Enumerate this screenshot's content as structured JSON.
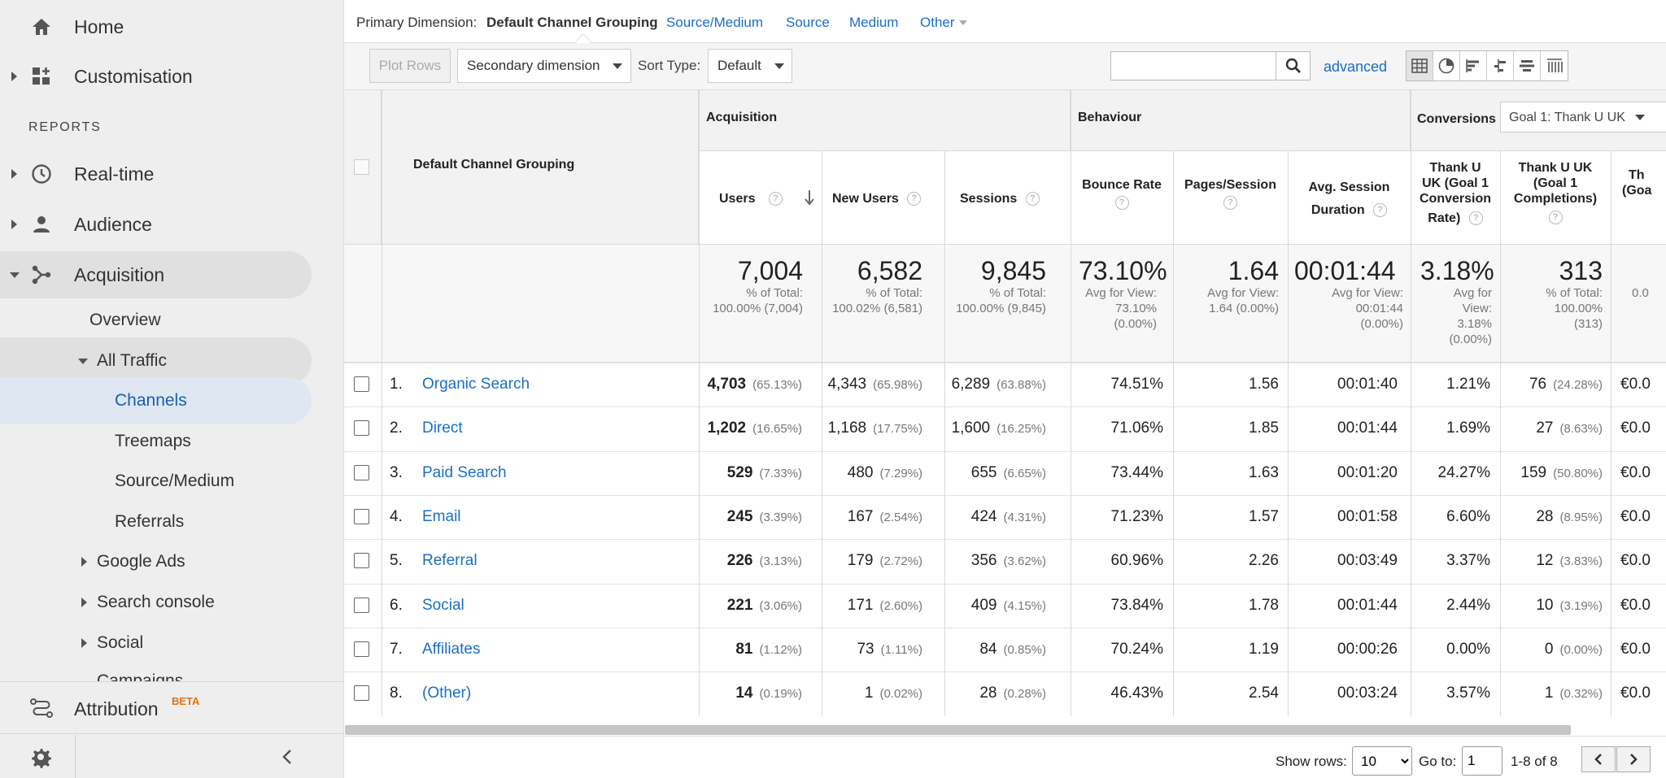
{
  "sidebar": {
    "home": "Home",
    "customisation": "Customisation",
    "reports_heading": "REPORTS",
    "realtime": "Real-time",
    "audience": "Audience",
    "acquisition": "Acquisition",
    "overview": "Overview",
    "all_traffic": "All Traffic",
    "channels": "Channels",
    "treemaps": "Treemaps",
    "source_medium": "Source/Medium",
    "referrals": "Referrals",
    "google_ads": "Google Ads",
    "search_console": "Search console",
    "social": "Social",
    "campaigns": "Campaigns",
    "attribution": "Attribution",
    "beta": "BETA"
  },
  "dimensions": {
    "label": "Primary Dimension:",
    "active": "Default Channel Grouping",
    "options": [
      "Source/Medium",
      "Source",
      "Medium",
      "Other"
    ]
  },
  "toolbar": {
    "plot_rows": "Plot Rows",
    "secondary_dimension": "Secondary dimension",
    "sort_type_label": "Sort Type:",
    "sort_type_value": "Default",
    "search_placeholder": "",
    "advanced": "advanced"
  },
  "table": {
    "dim_header": "Default Channel Grouping",
    "groups": {
      "acquisition": "Acquisition",
      "behaviour": "Behaviour",
      "conversions": "Conversions",
      "goal_select": "Goal 1: Thank U UK"
    },
    "cols": {
      "users": "Users",
      "new_users": "New Users",
      "sessions": "Sessions",
      "bounce_rate": "Bounce Rate",
      "pages_session": "Pages/Session",
      "avg_dur_1": "Avg. Session",
      "avg_dur_2": "Duration",
      "conv_rate_1": "Thank U",
      "conv_rate_2": "UK (Goal 1",
      "conv_rate_3": "Conversion",
      "conv_rate_4": "Rate)",
      "completions_1": "Thank U UK",
      "completions_2": "(Goal 1",
      "completions_3": "Completions)",
      "value_1": "Th",
      "value_2": "(Goa"
    },
    "totals": {
      "users": {
        "big": "7,004",
        "s1": "% of Total:",
        "s2": "100.00% (7,004)"
      },
      "new_users": {
        "big": "6,582",
        "s1": "% of Total:",
        "s2": "100.02% (6,581)"
      },
      "sessions": {
        "big": "9,845",
        "s1": "% of Total:",
        "s2": "100.00% (9,845)"
      },
      "bounce": {
        "big": "73.10%",
        "s1": "Avg for View:",
        "s2": "73.10%",
        "s3": "(0.00%)"
      },
      "pages": {
        "big": "1.64",
        "s1": "Avg for View:",
        "s2": "1.64 (0.00%)"
      },
      "duration": {
        "big": "00:01:44",
        "s1": "Avg for View:",
        "s2": "00:01:44",
        "s3": "(0.00%)"
      },
      "conv_rate": {
        "big": "3.18%",
        "s1": "Avg for",
        "s2": "View:",
        "s3": "3.18%",
        "s4": "(0.00%)"
      },
      "completions": {
        "big": "313",
        "s1": "% of Total:",
        "s2": "100.00%",
        "s3": "(313)"
      },
      "value": {
        "s1": "0.0"
      }
    },
    "rows": [
      {
        "idx": "1.",
        "channel": "Organic Search",
        "users": "4,703",
        "users_p": "(65.13%)",
        "new": "4,343",
        "new_p": "(65.98%)",
        "sess": "6,289",
        "sess_p": "(63.88%)",
        "bounce": "74.51%",
        "pages": "1.56",
        "dur": "00:01:40",
        "conv": "1.21%",
        "comp": "76",
        "comp_p": "(24.28%)",
        "val": "€0.0"
      },
      {
        "idx": "2.",
        "channel": "Direct",
        "users": "1,202",
        "users_p": "(16.65%)",
        "new": "1,168",
        "new_p": "(17.75%)",
        "sess": "1,600",
        "sess_p": "(16.25%)",
        "bounce": "71.06%",
        "pages": "1.85",
        "dur": "00:01:44",
        "conv": "1.69%",
        "comp": "27",
        "comp_p": "(8.63%)",
        "val": "€0.0"
      },
      {
        "idx": "3.",
        "channel": "Paid Search",
        "users": "529",
        "users_p": "(7.33%)",
        "new": "480",
        "new_p": "(7.29%)",
        "sess": "655",
        "sess_p": "(6.65%)",
        "bounce": "73.44%",
        "pages": "1.63",
        "dur": "00:01:20",
        "conv": "24.27%",
        "comp": "159",
        "comp_p": "(50.80%)",
        "val": "€0.0"
      },
      {
        "idx": "4.",
        "channel": "Email",
        "users": "245",
        "users_p": "(3.39%)",
        "new": "167",
        "new_p": "(2.54%)",
        "sess": "424",
        "sess_p": "(4.31%)",
        "bounce": "71.23%",
        "pages": "1.57",
        "dur": "00:01:58",
        "conv": "6.60%",
        "comp": "28",
        "comp_p": "(8.95%)",
        "val": "€0.0"
      },
      {
        "idx": "5.",
        "channel": "Referral",
        "users": "226",
        "users_p": "(3.13%)",
        "new": "179",
        "new_p": "(2.72%)",
        "sess": "356",
        "sess_p": "(3.62%)",
        "bounce": "60.96%",
        "pages": "2.26",
        "dur": "00:03:49",
        "conv": "3.37%",
        "comp": "12",
        "comp_p": "(3.83%)",
        "val": "€0.0"
      },
      {
        "idx": "6.",
        "channel": "Social",
        "users": "221",
        "users_p": "(3.06%)",
        "new": "171",
        "new_p": "(2.60%)",
        "sess": "409",
        "sess_p": "(4.15%)",
        "bounce": "73.84%",
        "pages": "1.78",
        "dur": "00:01:44",
        "conv": "2.44%",
        "comp": "10",
        "comp_p": "(3.19%)",
        "val": "€0.0"
      },
      {
        "idx": "7.",
        "channel": "Affiliates",
        "users": "81",
        "users_p": "(1.12%)",
        "new": "73",
        "new_p": "(1.11%)",
        "sess": "84",
        "sess_p": "(0.85%)",
        "bounce": "70.24%",
        "pages": "1.19",
        "dur": "00:00:26",
        "conv": "0.00%",
        "comp": "0",
        "comp_p": "(0.00%)",
        "val": "€0.0"
      },
      {
        "idx": "8.",
        "channel": "(Other)",
        "users": "14",
        "users_p": "(0.19%)",
        "new": "1",
        "new_p": "(0.02%)",
        "sess": "28",
        "sess_p": "(0.28%)",
        "bounce": "46.43%",
        "pages": "2.54",
        "dur": "00:03:24",
        "conv": "3.57%",
        "comp": "1",
        "comp_p": "(0.32%)",
        "val": "€0.0"
      }
    ]
  },
  "footer": {
    "show_rows_label": "Show rows:",
    "show_rows_value": "10",
    "goto_label": "Go to:",
    "goto_value": "1",
    "range": "1-8 of 8"
  },
  "colors": {
    "link": "#1a6fc4",
    "beta": "#e8710a",
    "sidebar_bg": "#eeeeee",
    "selected": "#dfe7f3"
  }
}
